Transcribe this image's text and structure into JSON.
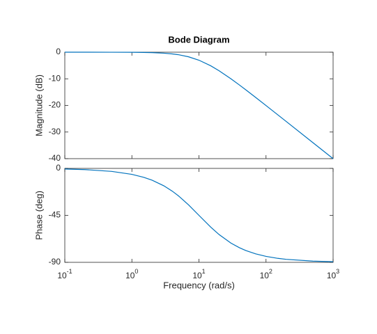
{
  "chart_data": [
    {
      "type": "line",
      "title": "Bode Diagram",
      "ylabel": "Magnitude (dB)",
      "x": [
        0.1,
        0.2,
        0.5,
        1,
        1.5,
        2,
        3,
        4,
        5,
        7,
        10,
        15,
        20,
        30,
        40,
        50,
        70,
        100,
        150,
        200,
        500,
        1000
      ],
      "series": [
        {
          "color": "#0072bd",
          "values": [
            -0.0004,
            -0.0017,
            -0.011,
            -0.043,
            -0.097,
            -0.17,
            -0.374,
            -0.645,
            -0.969,
            -1.732,
            -3.01,
            -5.119,
            -6.99,
            -10.0,
            -12.304,
            -14.15,
            -16.99,
            -20.043,
            -23.541,
            -26.031,
            -33.981,
            -40.0
          ]
        }
      ],
      "log_x": true,
      "xlim": [
        0.1,
        1000
      ],
      "xticks": [
        0.1,
        1,
        10,
        100,
        1000
      ],
      "ylim": [
        -40,
        0
      ],
      "yticks": [
        0,
        -10,
        -20,
        -30,
        -40
      ]
    },
    {
      "type": "line",
      "ylabel": "Phase (deg)",
      "xlabel": "Frequency  (rad/s)",
      "x": [
        0.1,
        0.2,
        0.5,
        1,
        1.5,
        2,
        3,
        4,
        5,
        7,
        10,
        15,
        20,
        30,
        40,
        50,
        70,
        100,
        150,
        200,
        500,
        1000
      ],
      "series": [
        {
          "color": "#0072bd",
          "values": [
            -0.573,
            -1.146,
            -2.862,
            -5.711,
            -8.531,
            -11.31,
            -16.699,
            -21.801,
            -26.565,
            -34.992,
            -45,
            -56.31,
            -63.435,
            -71.565,
            -75.964,
            -78.69,
            -81.87,
            -84.289,
            -86.186,
            -87.138,
            -88.854,
            -89.427
          ]
        }
      ],
      "log_x": true,
      "xlim": [
        0.1,
        1000
      ],
      "xticks": [
        {
          "value": 0.1,
          "label": "10",
          "sup": "-1"
        },
        {
          "value": 1,
          "label": "10",
          "sup": "0"
        },
        {
          "value": 10,
          "label": "10",
          "sup": "1"
        },
        {
          "value": 100,
          "label": "10",
          "sup": "2"
        },
        {
          "value": 1000,
          "label": "10",
          "sup": "3"
        }
      ],
      "ylim": [
        -90,
        0
      ],
      "yticks": [
        0,
        -45,
        -90
      ]
    }
  ]
}
